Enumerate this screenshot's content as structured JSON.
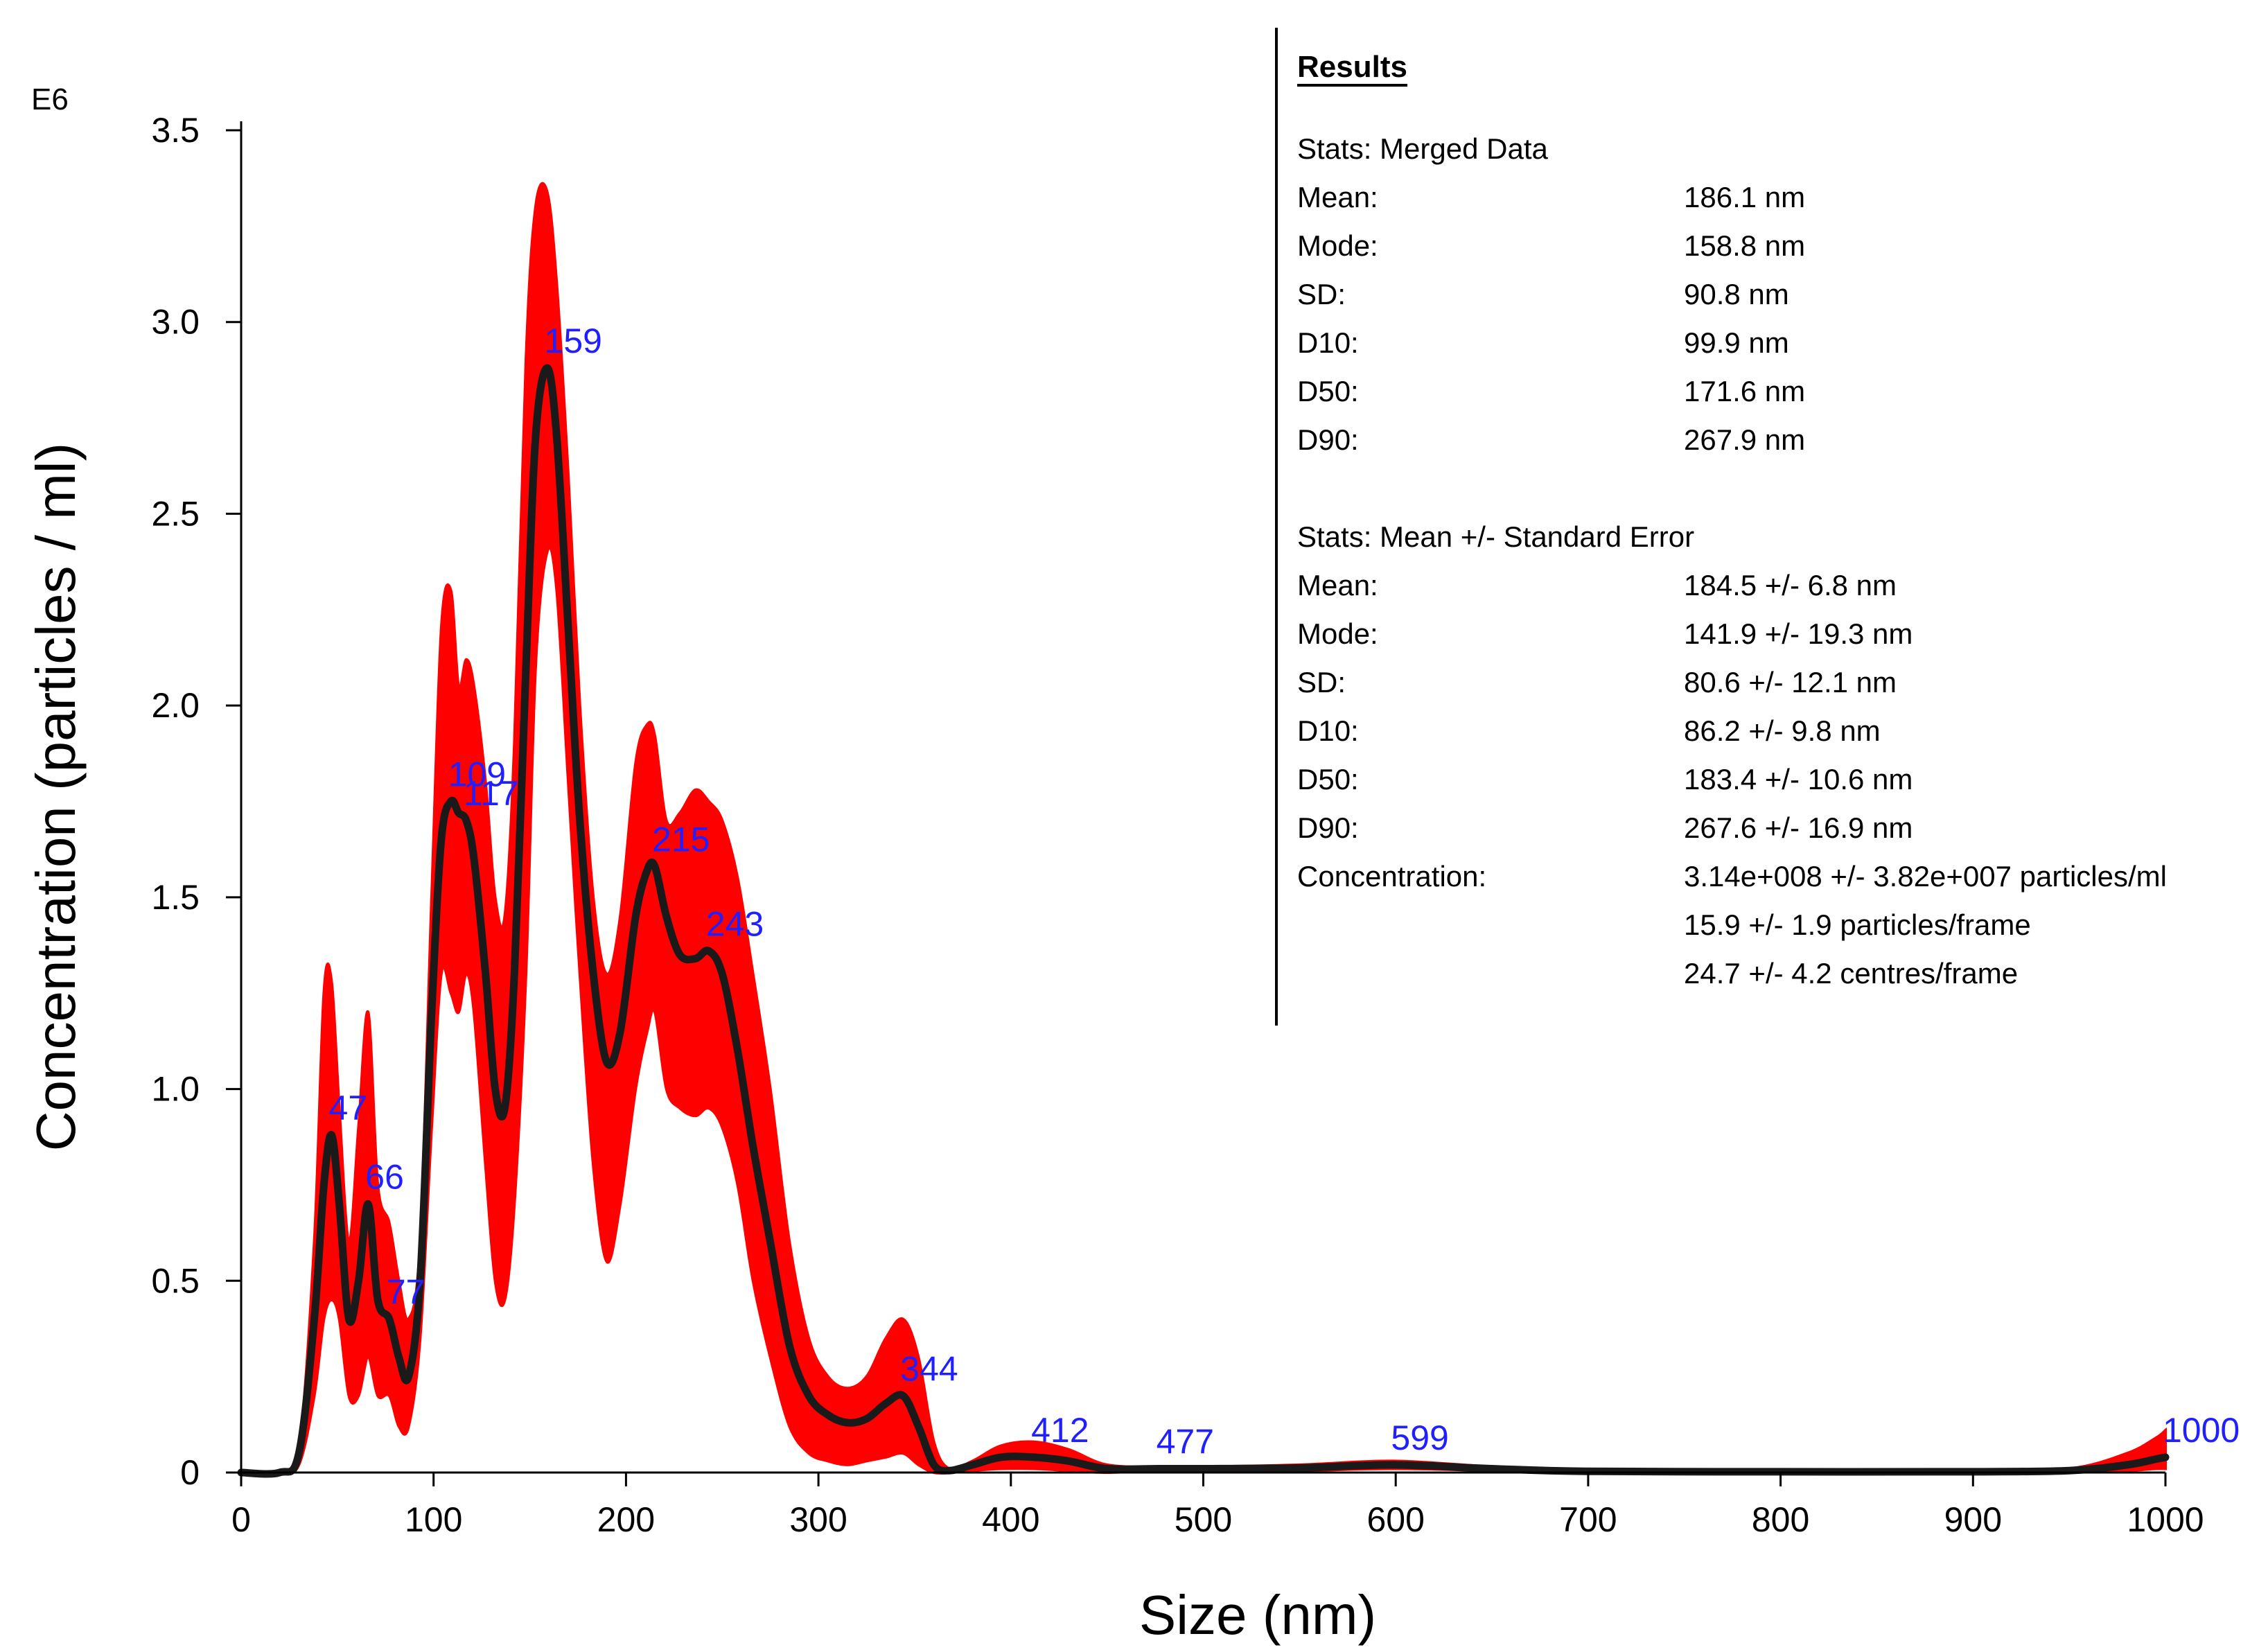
{
  "chart_data": {
    "type": "line",
    "title": "",
    "exponent_label": "E6",
    "xlabel": "Size (nm)",
    "ylabel": "Concentration (particles / ml)",
    "xlim": [
      0,
      1000
    ],
    "ylim": [
      0,
      3.5
    ],
    "x_ticks": [
      0,
      100,
      200,
      300,
      400,
      500,
      600,
      700,
      800,
      900,
      1000
    ],
    "x_tick_labels": [
      "0",
      "100",
      "200",
      "300",
      "400",
      "500",
      "600",
      "700",
      "800",
      "900",
      "1000"
    ],
    "y_ticks": [
      0,
      0.5,
      1.0,
      1.5,
      2.0,
      2.5,
      3.0,
      3.5
    ],
    "y_tick_labels": [
      "0",
      "0.5",
      "1.0",
      "1.5",
      "2.0",
      "2.5",
      "3.0",
      "3.5"
    ],
    "grid": false,
    "colors": {
      "mean_line": "#1a1a1a",
      "error_band": "#ff0000",
      "peak_labels": "#1f1fff"
    },
    "series": [
      {
        "name": "Mean concentration",
        "x": [
          0,
          20,
          30,
          38,
          43,
          47,
          51,
          56,
          61,
          66,
          71,
          77,
          82,
          87,
          93,
          99,
          104,
          109,
          113,
          117,
          121,
          127,
          132,
          137,
          142,
          148,
          153,
          159,
          164,
          170,
          176,
          183,
          190,
          197,
          205,
          211,
          215,
          221,
          228,
          236,
          243,
          250,
          258,
          266,
          275,
          285,
          295,
          305,
          315,
          325,
          335,
          344,
          352,
          360,
          368,
          380,
          395,
          412,
          430,
          450,
          477,
          500,
          550,
          599,
          650,
          700,
          800,
          900,
          950,
          980,
          995,
          1000
        ],
        "y": [
          0,
          0,
          0.05,
          0.4,
          0.75,
          0.88,
          0.7,
          0.4,
          0.5,
          0.7,
          0.45,
          0.4,
          0.3,
          0.25,
          0.5,
          1.2,
          1.65,
          1.75,
          1.72,
          1.7,
          1.6,
          1.3,
          1.0,
          0.95,
          1.3,
          2.1,
          2.7,
          2.88,
          2.7,
          2.2,
          1.7,
          1.3,
          1.07,
          1.15,
          1.45,
          1.57,
          1.58,
          1.45,
          1.35,
          1.34,
          1.36,
          1.3,
          1.1,
          0.85,
          0.6,
          0.33,
          0.2,
          0.15,
          0.13,
          0.14,
          0.18,
          0.2,
          0.12,
          0.02,
          0.005,
          0.02,
          0.04,
          0.04,
          0.03,
          0.01,
          0.01,
          0.01,
          0.012,
          0.02,
          0.01,
          0.003,
          0.002,
          0.002,
          0.005,
          0.02,
          0.035,
          0.04
        ]
      },
      {
        "name": "Standard error band upper",
        "x": [
          0,
          20,
          30,
          38,
          43,
          47,
          51,
          56,
          61,
          66,
          71,
          77,
          82,
          87,
          93,
          99,
          104,
          109,
          113,
          117,
          121,
          127,
          132,
          137,
          142,
          148,
          153,
          159,
          164,
          170,
          176,
          183,
          190,
          197,
          205,
          211,
          215,
          221,
          228,
          236,
          243,
          250,
          258,
          266,
          275,
          285,
          295,
          305,
          315,
          325,
          335,
          344,
          352,
          360,
          368,
          380,
          395,
          412,
          430,
          450,
          477,
          500,
          550,
          599,
          650,
          700,
          800,
          900,
          950,
          980,
          995,
          1000
        ],
        "y": [
          0,
          0,
          0.06,
          0.6,
          1.25,
          1.28,
          0.95,
          0.6,
          0.9,
          1.2,
          0.75,
          0.65,
          0.5,
          0.4,
          0.6,
          1.5,
          2.2,
          2.3,
          2.05,
          2.12,
          2.05,
          1.8,
          1.5,
          1.45,
          1.9,
          2.9,
          3.3,
          3.34,
          3.1,
          2.6,
          2.0,
          1.5,
          1.3,
          1.45,
          1.85,
          1.95,
          1.92,
          1.7,
          1.72,
          1.78,
          1.75,
          1.7,
          1.55,
          1.3,
          1.0,
          0.6,
          0.35,
          0.25,
          0.22,
          0.25,
          0.35,
          0.4,
          0.3,
          0.08,
          0.01,
          0.03,
          0.07,
          0.08,
          0.06,
          0.02,
          0.015,
          0.015,
          0.02,
          0.03,
          0.015,
          0.005,
          0.004,
          0.004,
          0.01,
          0.05,
          0.09,
          0.11
        ]
      },
      {
        "name": "Standard error band lower",
        "x": [
          0,
          20,
          30,
          38,
          43,
          47,
          51,
          56,
          61,
          66,
          71,
          77,
          82,
          87,
          93,
          99,
          104,
          109,
          113,
          117,
          121,
          127,
          132,
          137,
          142,
          148,
          153,
          159,
          164,
          170,
          176,
          183,
          190,
          197,
          205,
          211,
          215,
          221,
          228,
          236,
          243,
          250,
          258,
          266,
          275,
          285,
          295,
          305,
          315,
          325,
          335,
          344,
          352,
          360,
          368,
          380,
          395,
          412,
          430,
          450,
          477,
          500,
          550,
          599,
          650,
          700,
          800,
          900,
          950,
          980,
          995,
          1000
        ],
        "y": [
          0,
          0,
          0.02,
          0.2,
          0.4,
          0.45,
          0.4,
          0.2,
          0.2,
          0.3,
          0.2,
          0.2,
          0.12,
          0.12,
          0.35,
          0.9,
          1.3,
          1.25,
          1.2,
          1.3,
          1.2,
          0.8,
          0.5,
          0.45,
          0.7,
          1.3,
          2.1,
          2.4,
          2.3,
          1.8,
          1.3,
          0.8,
          0.55,
          0.7,
          1.0,
          1.15,
          1.2,
          1.0,
          0.95,
          0.93,
          0.95,
          0.9,
          0.75,
          0.5,
          0.3,
          0.12,
          0.05,
          0.03,
          0.02,
          0.03,
          0.04,
          0.05,
          0.02,
          0.0,
          0.0,
          0.005,
          0.01,
          0.01,
          0.005,
          0.0,
          0.005,
          0.005,
          0.005,
          0.01,
          0.005,
          0.001,
          0.0,
          0.0,
          0.001,
          0.005,
          0.01,
          0.01
        ]
      }
    ],
    "annotations": [
      {
        "text": "47",
        "x": 47,
        "y": 0.88
      },
      {
        "text": "66",
        "x": 66,
        "y": 0.7
      },
      {
        "text": "77",
        "x": 77,
        "y": 0.4
      },
      {
        "text": "109",
        "x": 109,
        "y": 1.75
      },
      {
        "text": "117",
        "x": 117,
        "y": 1.7
      },
      {
        "text": "159",
        "x": 159,
        "y": 2.88
      },
      {
        "text": "215",
        "x": 215,
        "y": 1.58
      },
      {
        "text": "243",
        "x": 243,
        "y": 1.36
      },
      {
        "text": "344",
        "x": 344,
        "y": 0.2
      },
      {
        "text": "412",
        "x": 412,
        "y": 0.04
      },
      {
        "text": "477",
        "x": 477,
        "y": 0.01
      },
      {
        "text": "599",
        "x": 599,
        "y": 0.02
      },
      {
        "text": "1000",
        "x": 1000,
        "y": 0.04
      }
    ]
  },
  "results": {
    "title": "Results",
    "merged": {
      "heading": "Stats: Merged Data",
      "rows": [
        {
          "label": "Mean:",
          "value": "186.1 nm"
        },
        {
          "label": "Mode:",
          "value": "158.8 nm"
        },
        {
          "label": "SD:",
          "value": "90.8 nm"
        },
        {
          "label": "D10:",
          "value": "99.9 nm"
        },
        {
          "label": "D50:",
          "value": "171.6 nm"
        },
        {
          "label": "D90:",
          "value": "267.9 nm"
        }
      ]
    },
    "mean_se": {
      "heading": "Stats: Mean +/- Standard Error",
      "rows": [
        {
          "label": "Mean:",
          "value": "184.5 +/- 6.8 nm"
        },
        {
          "label": "Mode:",
          "value": "141.9 +/- 19.3 nm"
        },
        {
          "label": "SD:",
          "value": "80.6 +/- 12.1 nm"
        },
        {
          "label": "D10:",
          "value": "86.2 +/- 9.8 nm"
        },
        {
          "label": "D50:",
          "value": "183.4 +/- 10.6 nm"
        },
        {
          "label": "D90:",
          "value": "267.6 +/- 16.9 nm"
        },
        {
          "label": "Concentration:",
          "value": "3.14e+008 +/- 3.82e+007 particles/ml"
        },
        {
          "label": "",
          "value": "15.9 +/- 1.9 particles/frame"
        },
        {
          "label": "",
          "value": "24.7 +/- 4.2 centres/frame"
        }
      ]
    }
  }
}
